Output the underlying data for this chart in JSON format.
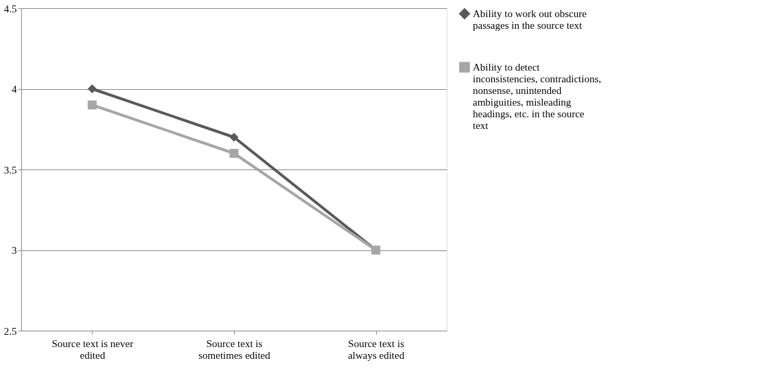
{
  "chart_data": {
    "type": "line",
    "categories": [
      "Source text is never edited",
      "Source text is sometimes edited",
      "Source text is always edited"
    ],
    "series": [
      {
        "name": "Ability to work out obscure passages in the source text",
        "color": "#595959",
        "marker": "diamond",
        "values": [
          4.0,
          3.7,
          3.0
        ]
      },
      {
        "name": "Ability to detect inconsistencies, contradictions, nonsense, unintended ambiguities, misleading headings, etc. in the source text",
        "color": "#a6a6a6",
        "marker": "square",
        "values": [
          3.9,
          3.6,
          3.0
        ]
      }
    ],
    "ylim": [
      2.5,
      4.5
    ],
    "yticks": [
      2.5,
      3,
      3.5,
      4,
      4.5
    ],
    "grid": "y",
    "legend": "right",
    "line_style": "solid"
  }
}
